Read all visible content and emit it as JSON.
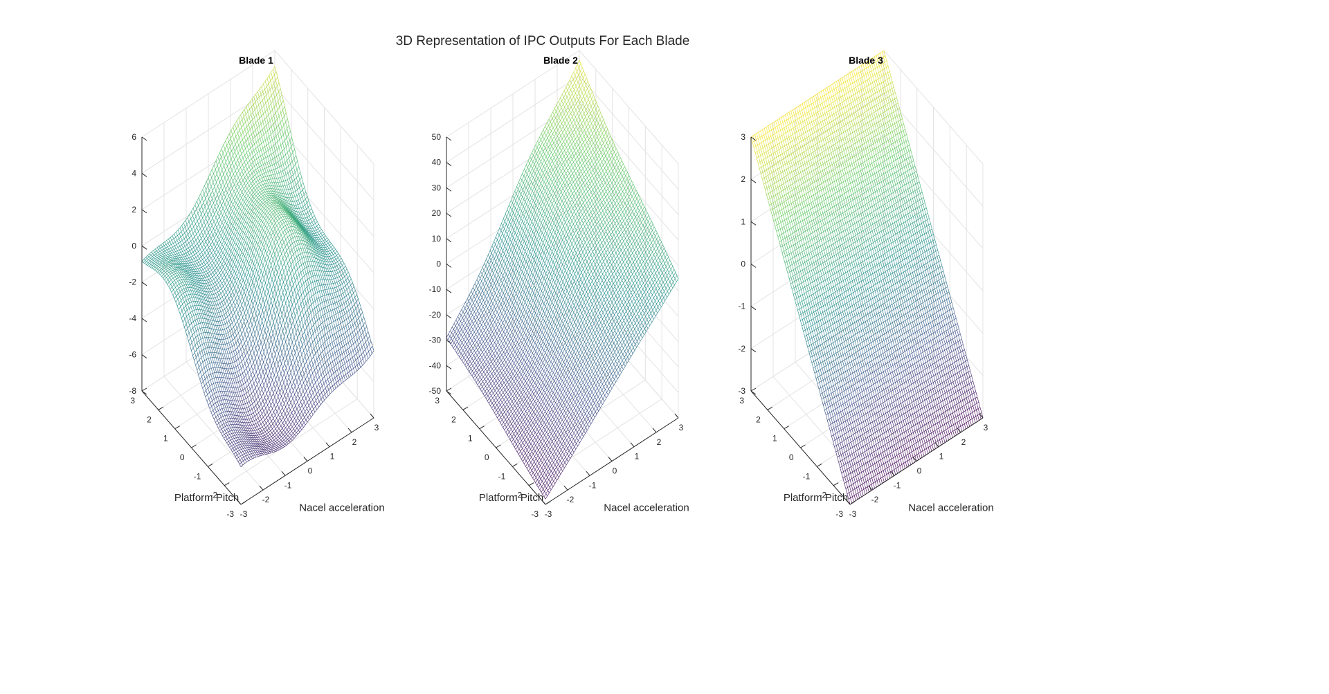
{
  "figure_title": "3D Representation of IPC Outputs For Each Blade",
  "colormap": [
    "#440154",
    "#3b528b",
    "#21918c",
    "#5ec962",
    "#fde725"
  ],
  "chart_data": [
    {
      "type": "surface",
      "title": "Blade 1",
      "xlabel": "Nacel acceleration",
      "ylabel": "Platform Pitch",
      "zlabel": "",
      "xlim": [
        -3,
        3
      ],
      "ylim": [
        -3,
        3
      ],
      "zlim": [
        -8,
        6
      ],
      "xticks": [
        "-3",
        "-2",
        "-1",
        "0",
        "1",
        "2",
        "3"
      ],
      "yticks": [
        "-3",
        "-2",
        "-1",
        "0",
        "1",
        "2",
        "3"
      ],
      "zticks": [
        "-8",
        "-6",
        "-4",
        "-2",
        "0",
        "2",
        "4",
        "6"
      ],
      "corner_values": {
        "x-3_y-3": -7.0,
        "x3_y-3": -3.5,
        "x-3_y3": -0.8,
        "x3_y3": 4.8
      },
      "grid": true
    },
    {
      "type": "surface",
      "title": "Blade 2",
      "xlabel": "Nacel acceleration",
      "ylabel": "Platform Pitch",
      "zlabel": "",
      "xlim": [
        -3,
        3
      ],
      "ylim": [
        -3,
        3
      ],
      "zlim": [
        -50,
        50
      ],
      "xticks": [
        "-3",
        "-2",
        "-1",
        "0",
        "1",
        "2",
        "3"
      ],
      "yticks": [
        "-3",
        "-2",
        "-1",
        "0",
        "1",
        "2",
        "3"
      ],
      "zticks": [
        "-50",
        "-40",
        "-30",
        "-20",
        "-10",
        "0",
        "10",
        "20",
        "30",
        "40",
        "50"
      ],
      "corner_values": {
        "x-3_y-3": -48,
        "x3_y-3": 5,
        "x-3_y3": -30,
        "x3_y3": 48
      },
      "grid": true
    },
    {
      "type": "surface",
      "title": "Blade 3",
      "xlabel": "Nacel acceleration",
      "ylabel": "Platform Pitch",
      "zlabel": "",
      "xlim": [
        -3,
        3
      ],
      "ylim": [
        -3,
        3
      ],
      "zlim": [
        -3,
        3
      ],
      "xticks": [
        "-3",
        "-2",
        "-1",
        "0",
        "1",
        "2",
        "3"
      ],
      "yticks": [
        "-3",
        "-2",
        "-1",
        "0",
        "1",
        "2",
        "3"
      ],
      "zticks": [
        "-3",
        "-2",
        "-1",
        "0",
        "1",
        "2",
        "3"
      ],
      "corner_values": {
        "x-3_y-3": -3,
        "x3_y-3": -3,
        "x-3_y3": 3,
        "x3_y3": 3
      },
      "grid": true
    }
  ]
}
